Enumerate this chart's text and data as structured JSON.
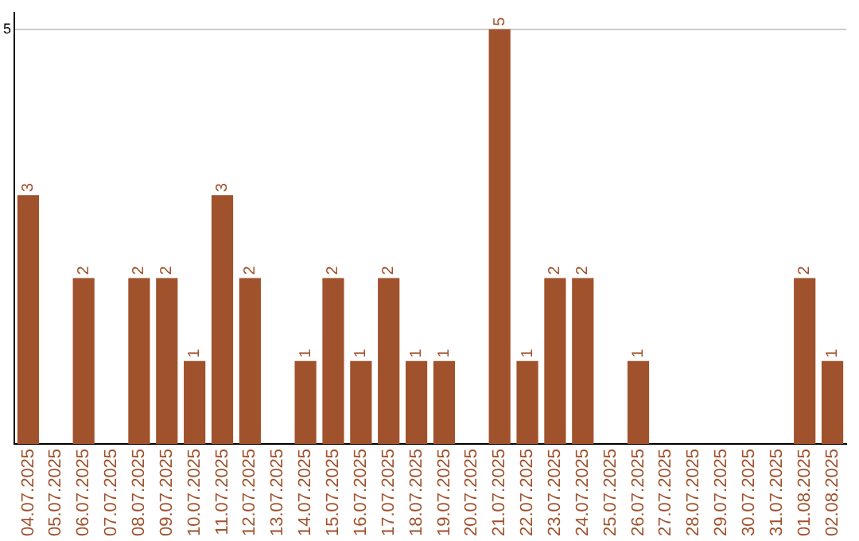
{
  "chart_data": {
    "type": "bar",
    "categories": [
      "04.07.2025",
      "05.07.2025",
      "06.07.2025",
      "07.07.2025",
      "08.07.2025",
      "09.07.2025",
      "10.07.2025",
      "11.07.2025",
      "12.07.2025",
      "13.07.2025",
      "14.07.2025",
      "15.07.2025",
      "16.07.2025",
      "17.07.2025",
      "18.07.2025",
      "19.07.2025",
      "20.07.2025",
      "21.07.2025",
      "22.07.2025",
      "23.07.2025",
      "24.07.2025",
      "25.07.2025",
      "26.07.2025",
      "27.07.2025",
      "28.07.2025",
      "29.07.2025",
      "30.07.2025",
      "31.07.2025",
      "01.08.2025",
      "02.08.2025"
    ],
    "values": [
      3,
      0,
      2,
      0,
      2,
      2,
      1,
      3,
      2,
      0,
      1,
      2,
      1,
      2,
      1,
      1,
      0,
      5,
      1,
      2,
      2,
      0,
      1,
      0,
      0,
      0,
      0,
      0,
      2,
      1
    ],
    "value_labels": [
      "3",
      null,
      "2",
      null,
      "2",
      "2",
      "1",
      "3",
      "2",
      null,
      "1",
      "2",
      "1",
      "2",
      "1",
      "1",
      null,
      "5",
      "1",
      "2",
      "2",
      null,
      "1",
      null,
      null,
      null,
      null,
      null,
      "2",
      "1"
    ],
    "color": "#a0522d",
    "ylim": [
      0,
      5.2
    ],
    "yticks": [
      5
    ],
    "grid": "y",
    "legend": false
  }
}
